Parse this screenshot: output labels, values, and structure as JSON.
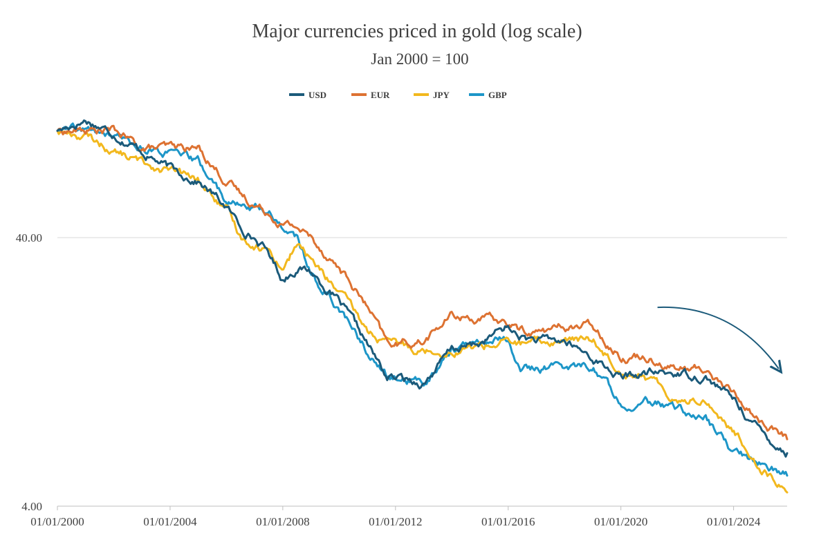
{
  "chart_data": {
    "type": "line",
    "title": "Major currencies priced in gold (log scale)",
    "subtitle": "Jan 2000 = 100",
    "xlabel": "",
    "ylabel": "",
    "yscale": "log",
    "xlim": [
      2000.0,
      2025.9
    ],
    "ylim": [
      4,
      160
    ],
    "x_ticks": [
      "01/01/2000",
      "01/01/2004",
      "01/01/2008",
      "01/01/2012",
      "01/01/2016",
      "01/01/2020",
      "01/01/2024"
    ],
    "x_tick_values": [
      2000,
      2004,
      2008,
      2012,
      2016,
      2020,
      2024
    ],
    "y_ticks": [
      "40.00",
      "4.00"
    ],
    "y_tick_values": [
      40,
      4
    ],
    "legend_position": "top-center",
    "annotations": [
      {
        "type": "arrow",
        "description": "downward curved arrow",
        "from": [
          2021.3,
          22
        ],
        "to": [
          2025.6,
          13
        ]
      }
    ],
    "x": [
      2000.0,
      2001.0,
      2002.0,
      2003.0,
      2004.0,
      2005.0,
      2006.0,
      2006.5,
      2007.0,
      2007.5,
      2008.0,
      2008.5,
      2009.0,
      2010.0,
      2011.0,
      2011.7,
      2012.0,
      2013.0,
      2014.0,
      2015.0,
      2015.9,
      2016.5,
      2017.0,
      2018.0,
      2019.0,
      2020.0,
      2021.0,
      2022.0,
      2023.0,
      2024.0,
      2025.0,
      2025.9
    ],
    "series": [
      {
        "name": "USD",
        "color": "#1b5a7a",
        "values": [
          100,
          110,
          98,
          84,
          72,
          65,
          52,
          44,
          40,
          35,
          28,
          31,
          30,
          23,
          16,
          12,
          12,
          11.5,
          15.3,
          16.1,
          18.5,
          17,
          16.5,
          16.4,
          14.3,
          12,
          12.5,
          12.5,
          12.2,
          10,
          7.5,
          6.3
        ]
      },
      {
        "name": "EUR",
        "color": "#dd7232",
        "values": [
          100,
          100,
          100,
          86,
          86,
          86,
          65,
          58,
          53,
          50,
          45,
          44,
          40,
          31,
          22,
          16,
          16,
          16.5,
          20.5,
          20,
          19.3,
          18,
          17.8,
          18.6,
          18.8,
          14.5,
          14.5,
          13,
          12.9,
          10.5,
          8.2,
          7.1
        ]
      },
      {
        "name": "JPY",
        "color": "#f2b81e",
        "values": [
          100,
          95,
          84,
          76,
          71,
          65,
          50,
          40,
          38,
          36,
          31,
          38,
          33,
          25,
          18,
          16,
          16,
          15.3,
          15.2,
          15.8,
          16.3,
          16,
          16.1,
          16.6,
          16.6,
          13,
          11.8,
          10,
          10,
          7.5,
          5.6,
          4.5
        ]
      },
      {
        "name": "GBP",
        "color": "#1d96c8",
        "values": [
          100,
          100,
          95,
          86,
          82,
          76,
          55,
          52,
          52,
          50,
          44,
          40,
          29,
          22,
          15,
          12,
          12,
          11.5,
          15.5,
          16,
          17,
          13,
          13,
          13.2,
          13.3,
          9.8,
          9.7,
          9.2,
          8.5,
          6.3,
          5.8,
          5.2
        ]
      }
    ]
  }
}
